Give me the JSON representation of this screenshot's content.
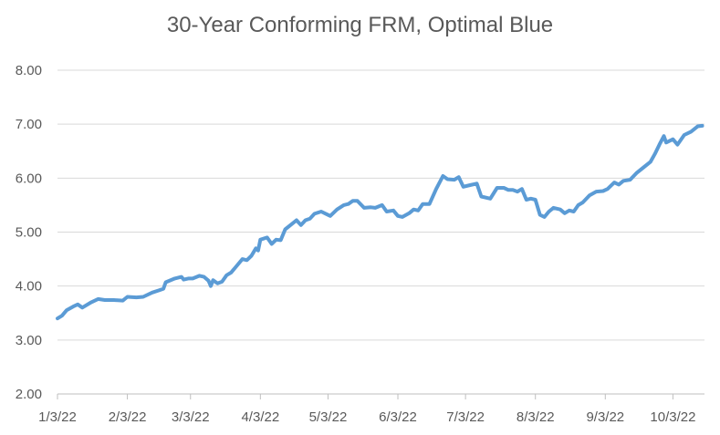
{
  "chart_data": {
    "type": "line",
    "title": "30-Year Conforming FRM, Optimal Blue",
    "xlabel": "",
    "ylabel": "",
    "x_tick_labels": [
      "1/3/22",
      "2/3/22",
      "3/3/22",
      "4/3/22",
      "5/3/22",
      "6/3/22",
      "7/3/22",
      "8/3/22",
      "9/3/22",
      "10/3/22"
    ],
    "x_range": [
      "1/3/22",
      "10/17/22"
    ],
    "ylim": [
      2.0,
      8.0
    ],
    "y_tick_labels": [
      "2.00",
      "3.00",
      "4.00",
      "5.00",
      "6.00",
      "7.00",
      "8.00"
    ],
    "grid": "horizontal",
    "line_color": "#5b9bd5",
    "grid_color": "#d9d9d9",
    "series": [
      {
        "points": [
          [
            "1/3/22",
            3.4
          ],
          [
            "1/5/22",
            3.45
          ],
          [
            "1/7/22",
            3.55
          ],
          [
            "1/10/22",
            3.62
          ],
          [
            "1/12/22",
            3.66
          ],
          [
            "1/14/22",
            3.6
          ],
          [
            "1/18/22",
            3.7
          ],
          [
            "1/21/22",
            3.76
          ],
          [
            "1/24/22",
            3.74
          ],
          [
            "1/28/22",
            3.74
          ],
          [
            "2/1/22",
            3.73
          ],
          [
            "2/3/22",
            3.8
          ],
          [
            "2/7/22",
            3.79
          ],
          [
            "2/10/22",
            3.8
          ],
          [
            "2/14/22",
            3.88
          ],
          [
            "2/17/22",
            3.92
          ],
          [
            "2/19/22",
            3.95
          ],
          [
            "2/20/22",
            4.07
          ],
          [
            "2/24/22",
            4.14
          ],
          [
            "2/27/22",
            4.17
          ],
          [
            "2/28/22",
            4.12
          ],
          [
            "3/2/22",
            4.14
          ],
          [
            "3/4/22",
            4.14
          ],
          [
            "3/7/22",
            4.19
          ],
          [
            "3/9/22",
            4.17
          ],
          [
            "3/11/22",
            4.1
          ],
          [
            "3/12/22",
            4.0
          ],
          [
            "3/13/22",
            4.11
          ],
          [
            "3/15/22",
            4.05
          ],
          [
            "3/17/22",
            4.08
          ],
          [
            "3/19/22",
            4.2
          ],
          [
            "3/21/22",
            4.25
          ],
          [
            "3/23/22",
            4.35
          ],
          [
            "3/26/22",
            4.5
          ],
          [
            "3/28/22",
            4.48
          ],
          [
            "3/30/22",
            4.56
          ],
          [
            "4/1/22",
            4.7
          ],
          [
            "4/2/22",
            4.66
          ],
          [
            "4/3/22",
            4.86
          ],
          [
            "4/6/22",
            4.9
          ],
          [
            "4/8/22",
            4.78
          ],
          [
            "4/10/22",
            4.86
          ],
          [
            "4/12/22",
            4.85
          ],
          [
            "4/14/22",
            5.05
          ],
          [
            "4/17/22",
            5.15
          ],
          [
            "4/19/22",
            5.22
          ],
          [
            "4/21/22",
            5.13
          ],
          [
            "4/23/22",
            5.22
          ],
          [
            "4/25/22",
            5.25
          ],
          [
            "4/27/22",
            5.34
          ],
          [
            "4/30/22",
            5.38
          ],
          [
            "5/2/22",
            5.34
          ],
          [
            "5/4/22",
            5.3
          ],
          [
            "5/7/22",
            5.42
          ],
          [
            "5/10/22",
            5.5
          ],
          [
            "5/12/22",
            5.52
          ],
          [
            "5/14/22",
            5.58
          ],
          [
            "5/16/22",
            5.58
          ],
          [
            "5/19/22",
            5.45
          ],
          [
            "5/22/22",
            5.46
          ],
          [
            "5/24/22",
            5.45
          ],
          [
            "5/27/22",
            5.5
          ],
          [
            "5/29/22",
            5.38
          ],
          [
            "6/1/22",
            5.4
          ],
          [
            "6/3/22",
            5.3
          ],
          [
            "6/5/22",
            5.28
          ],
          [
            "6/8/22",
            5.35
          ],
          [
            "6/10/22",
            5.42
          ],
          [
            "6/12/22",
            5.4
          ],
          [
            "6/14/22",
            5.52
          ],
          [
            "6/17/22",
            5.52
          ],
          [
            "6/20/22",
            5.8
          ],
          [
            "6/23/22",
            6.04
          ],
          [
            "6/25/22",
            5.98
          ],
          [
            "6/28/22",
            5.97
          ],
          [
            "6/30/22",
            6.02
          ],
          [
            "7/2/22",
            5.84
          ],
          [
            "7/5/22",
            5.87
          ],
          [
            "7/8/22",
            5.9
          ],
          [
            "7/10/22",
            5.66
          ],
          [
            "7/14/22",
            5.62
          ],
          [
            "7/17/22",
            5.82
          ],
          [
            "7/20/22",
            5.82
          ],
          [
            "7/22/22",
            5.78
          ],
          [
            "7/24/22",
            5.78
          ],
          [
            "7/26/22",
            5.75
          ],
          [
            "7/28/22",
            5.8
          ],
          [
            "7/30/22",
            5.6
          ],
          [
            "8/1/22",
            5.62
          ],
          [
            "8/3/22",
            5.6
          ],
          [
            "8/5/22",
            5.32
          ],
          [
            "8/7/22",
            5.28
          ],
          [
            "8/9/22",
            5.38
          ],
          [
            "8/11/22",
            5.45
          ],
          [
            "8/14/22",
            5.42
          ],
          [
            "8/16/22",
            5.35
          ],
          [
            "8/18/22",
            5.4
          ],
          [
            "8/20/22",
            5.38
          ],
          [
            "8/22/22",
            5.5
          ],
          [
            "8/24/22",
            5.55
          ],
          [
            "8/27/22",
            5.68
          ],
          [
            "8/30/22",
            5.75
          ],
          [
            "9/2/22",
            5.76
          ],
          [
            "9/4/22",
            5.8
          ],
          [
            "9/7/22",
            5.92
          ],
          [
            "9/9/22",
            5.88
          ],
          [
            "9/11/22",
            5.95
          ],
          [
            "9/14/22",
            5.97
          ],
          [
            "9/17/22",
            6.1
          ],
          [
            "9/20/22",
            6.2
          ],
          [
            "9/23/22",
            6.3
          ],
          [
            "9/25/22",
            6.45
          ],
          [
            "9/27/22",
            6.62
          ],
          [
            "9/29/22",
            6.78
          ],
          [
            "9/30/22",
            6.66
          ],
          [
            "10/3/22",
            6.72
          ],
          [
            "10/5/22",
            6.62
          ],
          [
            "10/8/22",
            6.8
          ],
          [
            "10/11/22",
            6.86
          ],
          [
            "10/14/22",
            6.96
          ],
          [
            "10/16/22",
            6.97
          ]
        ]
      }
    ]
  }
}
